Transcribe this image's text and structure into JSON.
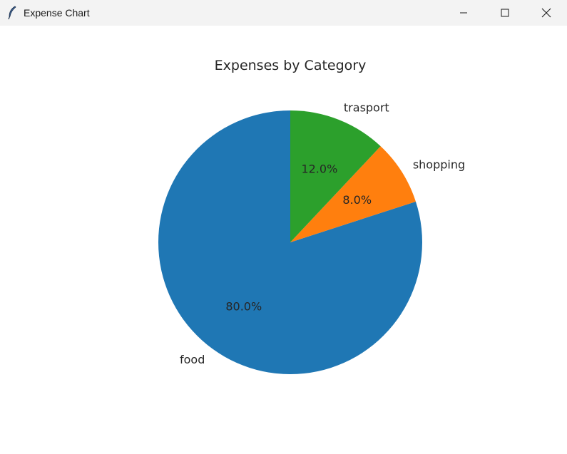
{
  "window": {
    "title": "Expense Chart",
    "icons": {
      "app": "feather-icon",
      "minimize": "minimize-icon",
      "maximize": "maximize-icon",
      "close": "close-icon"
    }
  },
  "chart_data": {
    "type": "pie",
    "title": "Expenses by Category",
    "slices": [
      {
        "label": "food",
        "value": 80.0,
        "pct_label": "80.0%",
        "color": "#1f77b4"
      },
      {
        "label": "shopping",
        "value": 8.0,
        "pct_label": "8.0%",
        "color": "#ff7f0e"
      },
      {
        "label": "trasport",
        "value": 12.0,
        "pct_label": "12.0%",
        "color": "#2ca02c"
      }
    ],
    "start_angle_deg": 90,
    "direction": "counterclockwise"
  }
}
